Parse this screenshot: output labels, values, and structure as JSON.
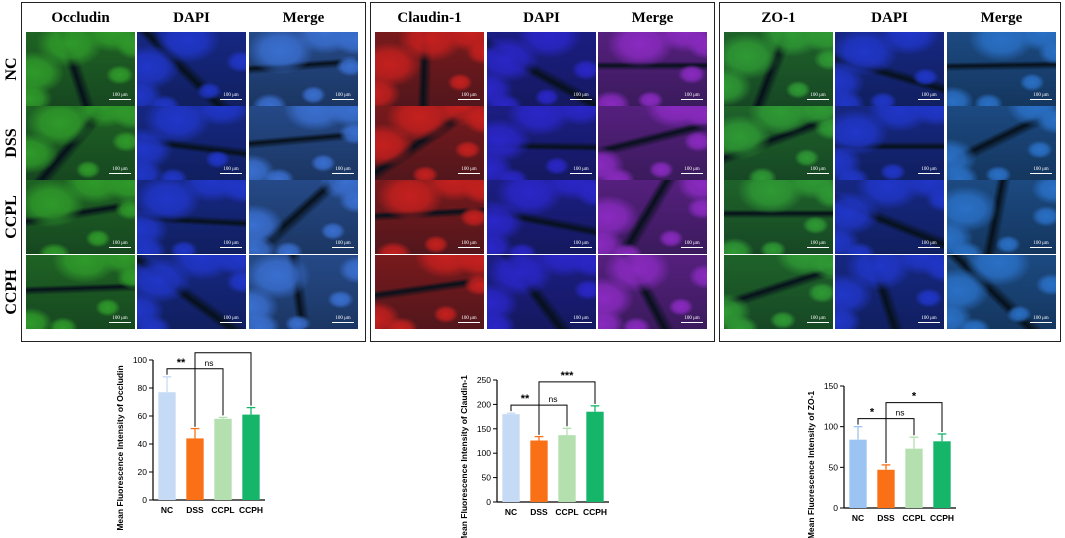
{
  "micrographs": {
    "rows": [
      "NC",
      "DSS",
      "CCPL",
      "CCPH"
    ],
    "scale_bar": "100 μm",
    "panels": [
      {
        "columns": [
          "Occludin",
          "DAPI",
          "Merge"
        ],
        "colors": [
          "#2f9a2a",
          "#2036c8",
          "#3a6fd0"
        ]
      },
      {
        "columns": [
          "Claudin-1",
          "DAPI",
          "Merge"
        ],
        "colors": [
          "#c4201e",
          "#2a26c8",
          "#8a2ac0"
        ]
      },
      {
        "columns": [
          "ZO-1",
          "DAPI",
          "Merge"
        ],
        "colors": [
          "#2f9a34",
          "#2036c8",
          "#2a70c6"
        ]
      }
    ]
  },
  "chart_data": [
    {
      "type": "bar",
      "categories": [
        "NC",
        "DSS",
        "CCPL",
        "CCPH"
      ],
      "values": [
        77,
        44,
        58,
        61
      ],
      "errors": [
        11,
        7,
        1,
        5
      ],
      "colors": [
        "#c5dbf5",
        "#f97016",
        "#b4e0b0",
        "#15b56a"
      ],
      "ylabel": "Mean Fluorescence Intensity of Occludin",
      "ylim": [
        0,
        100
      ],
      "yticks": [
        0,
        20,
        40,
        60,
        80,
        100
      ],
      "significance": [
        {
          "from": 0,
          "to": 1,
          "label": "**"
        },
        {
          "from": 1,
          "to": 2,
          "label": "ns"
        },
        {
          "from": 1,
          "to": 3,
          "label": "*"
        }
      ]
    },
    {
      "type": "bar",
      "categories": [
        "NC",
        "DSS",
        "CCPL",
        "CCPH"
      ],
      "values": [
        180,
        126,
        137,
        185
      ],
      "errors": [
        2,
        8,
        14,
        12
      ],
      "colors": [
        "#c5dbf5",
        "#f97016",
        "#b4e0b0",
        "#15b56a"
      ],
      "ylabel": "Mean Fluorescence Intensity of Claudin-1",
      "ylim": [
        0,
        250
      ],
      "yticks": [
        0,
        50,
        100,
        150,
        200,
        250
      ],
      "significance": [
        {
          "from": 0,
          "to": 1,
          "label": "**"
        },
        {
          "from": 1,
          "to": 2,
          "label": "ns"
        },
        {
          "from": 1,
          "to": 3,
          "label": "***"
        }
      ]
    },
    {
      "type": "bar",
      "categories": [
        "NC",
        "DSS",
        "CCPL",
        "CCPH"
      ],
      "values": [
        84,
        47,
        73,
        82
      ],
      "errors": [
        16,
        6,
        14,
        9
      ],
      "colors": [
        "#9cc4f2",
        "#f97016",
        "#b4e0b0",
        "#15b56a"
      ],
      "ylabel": "Mean Fluorescence Intensity of ZO-1",
      "ylim": [
        0,
        150
      ],
      "yticks": [
        0,
        50,
        100,
        150
      ],
      "significance": [
        {
          "from": 0,
          "to": 1,
          "label": "*"
        },
        {
          "from": 1,
          "to": 2,
          "label": "ns"
        },
        {
          "from": 1,
          "to": 3,
          "label": "*"
        }
      ]
    }
  ]
}
